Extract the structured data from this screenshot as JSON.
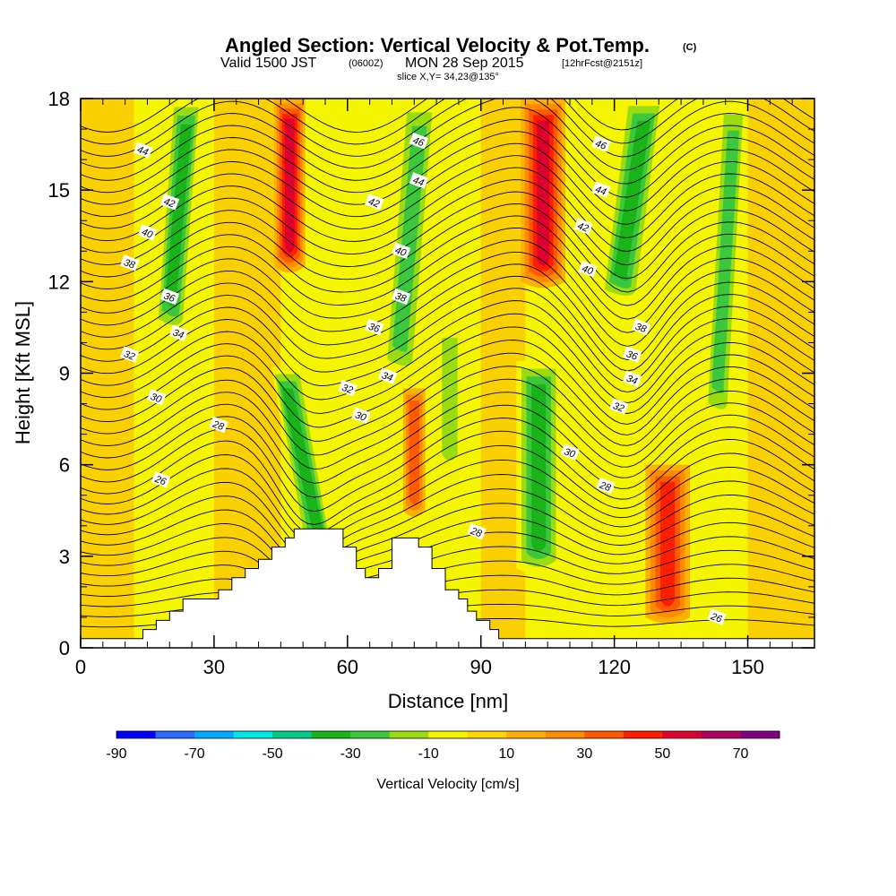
{
  "title": {
    "main": "Angled Section: Vertical Velocity & Pot.Temp.",
    "main_suffix": "(C)",
    "sub_valid": "Valid 1500 JST",
    "sub_utc": "(0600Z)",
    "sub_date": "MON 28 Sep 2015",
    "sub_fcst": "[12hrFcst@2151z]",
    "slice": "slice X,Y= 34,23@135°"
  },
  "chart_data": {
    "type": "heatmap",
    "xlabel": "Distance [nm]",
    "ylabel": "Height [Kft MSL]",
    "xlim": [
      0,
      165
    ],
    "ylim": [
      0,
      18
    ],
    "xticks": [
      0,
      30,
      60,
      90,
      120,
      150
    ],
    "yticks": [
      0,
      3,
      6,
      9,
      12,
      15,
      18
    ],
    "colorbar": {
      "title": "Vertical Velocity [cm/s]",
      "levels": [
        -90,
        -80,
        -70,
        -60,
        -50,
        -40,
        -30,
        -20,
        -10,
        0,
        10,
        20,
        30,
        40,
        50,
        60,
        70,
        80
      ],
      "labels": [
        "-90",
        "-70",
        "-50",
        "-30",
        "-10",
        "10",
        "30",
        "50",
        "70"
      ],
      "label_values": [
        -90,
        -70,
        -50,
        -30,
        -10,
        10,
        30,
        50,
        70
      ],
      "colors": [
        "#0000ff",
        "#2a6cff",
        "#00aaff",
        "#00e6e6",
        "#00cc88",
        "#18b418",
        "#3cc83c",
        "#99dd11",
        "#f5f500",
        "#ffd700",
        "#ffb000",
        "#ff8c00",
        "#ff5a00",
        "#ff1e00",
        "#e00030",
        "#b00060",
        "#800080"
      ]
    },
    "terrain": [
      [
        0,
        0.3
      ],
      [
        14,
        0.3
      ],
      [
        14,
        0.6
      ],
      [
        17,
        0.6
      ],
      [
        17,
        0.9
      ],
      [
        20,
        0.9
      ],
      [
        20,
        1.2
      ],
      [
        23,
        1.2
      ],
      [
        23,
        1.6
      ],
      [
        31,
        1.6
      ],
      [
        31,
        1.9
      ],
      [
        34,
        1.9
      ],
      [
        34,
        2.3
      ],
      [
        37,
        2.3
      ],
      [
        37,
        2.6
      ],
      [
        40,
        2.6
      ],
      [
        40,
        2.9
      ],
      [
        43,
        2.9
      ],
      [
        43,
        3.3
      ],
      [
        46,
        3.3
      ],
      [
        46,
        3.6
      ],
      [
        48,
        3.6
      ],
      [
        48,
        3.9
      ],
      [
        59,
        3.9
      ],
      [
        59,
        3.3
      ],
      [
        62,
        3.3
      ],
      [
        62,
        2.6
      ],
      [
        64,
        2.6
      ],
      [
        64,
        2.3
      ],
      [
        67,
        2.3
      ],
      [
        67,
        2.6
      ],
      [
        70,
        2.6
      ],
      [
        70,
        3.6
      ],
      [
        76,
        3.6
      ],
      [
        76,
        3.3
      ],
      [
        79,
        3.3
      ],
      [
        79,
        2.6
      ],
      [
        82,
        2.6
      ],
      [
        82,
        1.9
      ],
      [
        85,
        1.9
      ],
      [
        85,
        1.6
      ],
      [
        87,
        1.6
      ],
      [
        87,
        1.2
      ],
      [
        89,
        1.2
      ],
      [
        89,
        0.9
      ],
      [
        92,
        0.9
      ],
      [
        92,
        0.6
      ],
      [
        94,
        0.6
      ],
      [
        94,
        0.3
      ],
      [
        165,
        0.3
      ]
    ],
    "vertical_velocity_features": [
      {
        "x": 22,
        "y0": 10.5,
        "y1": 18,
        "w": 6,
        "value": -30,
        "tilt": 4
      },
      {
        "x": 47,
        "y0": 12.5,
        "y1": 18,
        "w": 6,
        "value": 40,
        "tilt": 0
      },
      {
        "x": 50,
        "y0": 3.0,
        "y1": 9.2,
        "w": 6,
        "value": -30,
        "tilt": -8
      },
      {
        "x": 74,
        "y0": 9.0,
        "y1": 18,
        "w": 7,
        "value": -20,
        "tilt": 5
      },
      {
        "x": 75,
        "y0": 4.5,
        "y1": 8.5,
        "w": 4,
        "value": 20,
        "tilt": 0
      },
      {
        "x": 83,
        "y0": 6.0,
        "y1": 10.5,
        "w": 5,
        "value": -10,
        "tilt": 0
      },
      {
        "x": 104,
        "y0": 12.0,
        "y1": 18,
        "w": 9,
        "value": 50,
        "tilt": 0
      },
      {
        "x": 103,
        "y0": 2.6,
        "y1": 9.4,
        "w": 9,
        "value": -30,
        "tilt": 0
      },
      {
        "x": 124,
        "y0": 11.5,
        "y1": 18,
        "w": 8,
        "value": -30,
        "tilt": 6
      },
      {
        "x": 132,
        "y0": 1.0,
        "y1": 6.0,
        "w": 9,
        "value": 30,
        "tilt": 0
      },
      {
        "x": 145,
        "y0": 7.5,
        "y1": 18,
        "w": 5,
        "value": -20,
        "tilt": 4
      }
    ],
    "pot_temp_contours": {
      "levels": [
        26,
        28,
        30,
        32,
        34,
        36,
        38,
        40,
        42,
        44,
        46
      ],
      "labels": [
        {
          "text": "44",
          "x": 14,
          "y": 16.3
        },
        {
          "text": "42",
          "x": 20,
          "y": 14.6
        },
        {
          "text": "40",
          "x": 15,
          "y": 13.6
        },
        {
          "text": "38",
          "x": 11,
          "y": 12.6
        },
        {
          "text": "36",
          "x": 20,
          "y": 11.5
        },
        {
          "text": "34",
          "x": 22,
          "y": 10.3
        },
        {
          "text": "32",
          "x": 11,
          "y": 9.6
        },
        {
          "text": "30",
          "x": 17,
          "y": 8.2
        },
        {
          "text": "28",
          "x": 31,
          "y": 7.3
        },
        {
          "text": "26",
          "x": 18,
          "y": 5.5
        },
        {
          "text": "46",
          "x": 76,
          "y": 16.6
        },
        {
          "text": "44",
          "x": 76,
          "y": 15.3
        },
        {
          "text": "42",
          "x": 66,
          "y": 14.6
        },
        {
          "text": "40",
          "x": 72,
          "y": 13.0
        },
        {
          "text": "38",
          "x": 72,
          "y": 11.5
        },
        {
          "text": "36",
          "x": 66,
          "y": 10.5
        },
        {
          "text": "34",
          "x": 69,
          "y": 8.9
        },
        {
          "text": "32",
          "x": 60,
          "y": 8.5
        },
        {
          "text": "30",
          "x": 63,
          "y": 7.6
        },
        {
          "text": "28",
          "x": 89,
          "y": 3.8
        },
        {
          "text": "46",
          "x": 117,
          "y": 16.5
        },
        {
          "text": "44",
          "x": 117,
          "y": 15.0
        },
        {
          "text": "42",
          "x": 113,
          "y": 13.8
        },
        {
          "text": "40",
          "x": 114,
          "y": 12.4
        },
        {
          "text": "38",
          "x": 126,
          "y": 10.5
        },
        {
          "text": "36",
          "x": 124,
          "y": 9.6
        },
        {
          "text": "34",
          "x": 124,
          "y": 8.8
        },
        {
          "text": "32",
          "x": 121,
          "y": 7.9
        },
        {
          "text": "30",
          "x": 110,
          "y": 6.4
        },
        {
          "text": "28",
          "x": 118,
          "y": 5.3
        },
        {
          "text": "26",
          "x": 143,
          "y": 1.0
        }
      ]
    }
  }
}
